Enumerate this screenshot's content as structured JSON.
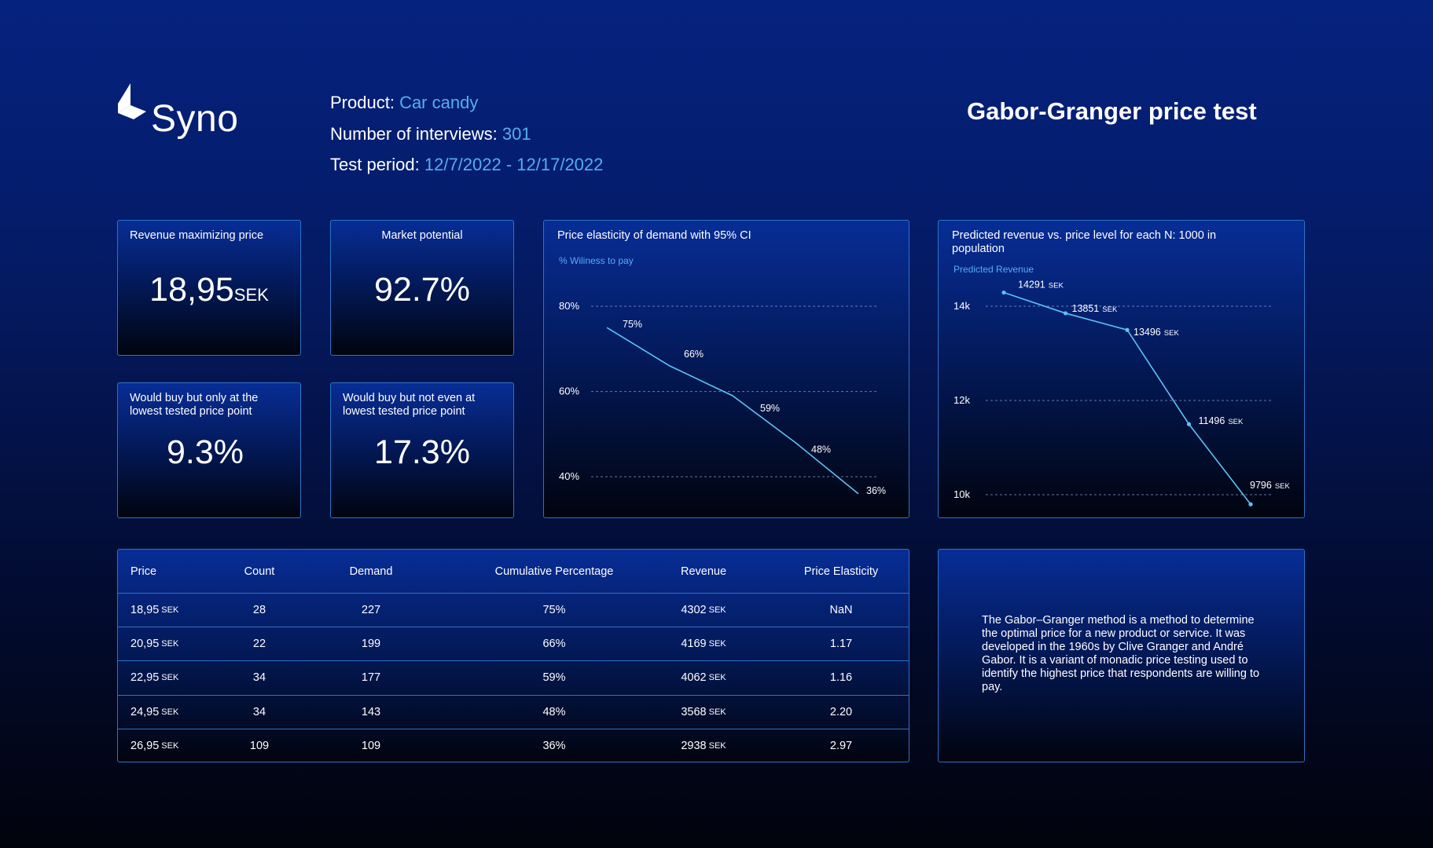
{
  "brand": {
    "name": "Syno",
    "logo": "syno-logo-icon"
  },
  "info": {
    "product_label": "Product:",
    "product_value": "Car candy",
    "interviews_label": "Number of interviews:",
    "interviews_value": "301",
    "period_label": "Test period:",
    "period_value": "12/7/2022 - 12/17/2022"
  },
  "report_title": "Gabor-Granger price test",
  "kpis": {
    "revenue_max_price": {
      "title": "Revenue maximizing price",
      "value": "18,95",
      "unit": "SEK"
    },
    "market_potential": {
      "title": "Market potential",
      "value": "92.7%"
    },
    "lowest_price_only": {
      "title": "Would buy but only at the lowest tested price point",
      "value": "9.3%"
    },
    "not_even_lowest": {
      "title": "Would buy but not even at lowest tested price point",
      "value": "17.3%"
    }
  },
  "colors": {
    "accent": "#55aef0",
    "line": "#5cc3f5",
    "border": "#2a74c6"
  },
  "chart_data": [
    {
      "type": "line",
      "title": "Price elasticity of demand with 95% CI",
      "ylabel": "% Wiliness to pay",
      "y_ticks": [
        "80%",
        "60%",
        "40%"
      ],
      "ylim": [
        38,
        80
      ],
      "series": [
        {
          "values": [
            75,
            66,
            59,
            48,
            36
          ],
          "labels": [
            "75%",
            "66%",
            "59%",
            "48%",
            "36%"
          ]
        }
      ],
      "grid": true
    },
    {
      "type": "line",
      "title": "Predicted revenue vs. price level for each N: 1000 in population",
      "ylabel": "Predicted Revenue",
      "y_ticks": [
        "14k",
        "12k",
        "10k"
      ],
      "ylim": [
        10000,
        14000
      ],
      "unit": "SEK",
      "series": [
        {
          "values": [
            14291,
            13851,
            13496,
            11496,
            9796
          ],
          "labels": [
            "14291",
            "13851",
            "13496",
            "11496",
            "9796"
          ]
        }
      ],
      "grid": true
    }
  ],
  "table": {
    "headers": [
      "Price",
      "Count",
      "Demand",
      "Cumulative Percentage",
      "Revenue",
      "Price Elasticity"
    ],
    "unit": "SEK",
    "rows": [
      {
        "price": "18,95",
        "count": "28",
        "demand": "227",
        "cumulative": "75%",
        "revenue": "4302",
        "elasticity": "NaN"
      },
      {
        "price": "20,95",
        "count": "22",
        "demand": "199",
        "cumulative": "66%",
        "revenue": "4169",
        "elasticity": "1.17"
      },
      {
        "price": "22,95",
        "count": "34",
        "demand": "177",
        "cumulative": "59%",
        "revenue": "4062",
        "elasticity": "1.16"
      },
      {
        "price": "24,95",
        "count": "34",
        "demand": "143",
        "cumulative": "48%",
        "revenue": "3568",
        "elasticity": "2.20"
      },
      {
        "price": "26,95",
        "count": "109",
        "demand": "109",
        "cumulative": "36%",
        "revenue": "2938",
        "elasticity": "2.97"
      }
    ]
  },
  "description": "The Gabor–Granger method is a method to determine the optimal price for a new product or service. It was developed in the 1960s by Clive Granger and André Gabor. It is a variant of monadic price testing used to identify the highest price that respondents are willing to pay."
}
